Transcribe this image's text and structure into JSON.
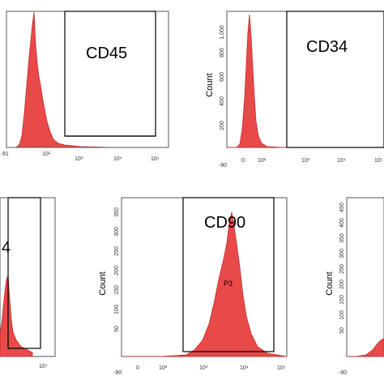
{
  "chart_data": [
    {
      "type": "area",
      "title": "CD45",
      "x_ticks": [
        "81",
        "10²",
        "10³",
        "10⁴",
        "10⁵"
      ],
      "y_ticks": [],
      "ylabel": "",
      "gate_label": "",
      "fill_color": "#e84a4a",
      "peak_x": "10^1.8",
      "gate_positive_percent_estimate": 0
    },
    {
      "type": "area",
      "title": "CD34",
      "x_ticks": [
        "-90",
        "0",
        "10²",
        "10³",
        "10⁴",
        "10⁵"
      ],
      "y_ticks": [
        "200",
        "400",
        "600",
        "800",
        "1,000"
      ],
      "ylim": [
        0,
        1100
      ],
      "ylabel": "Count",
      "gate_label": "",
      "fill_color": "#e84a4a",
      "peak_count": 1050
    },
    {
      "type": "area",
      "title": "4",
      "x_ticks": [
        "10⁵"
      ],
      "y_ticks": [],
      "ylabel": "",
      "gate_label": "",
      "fill_color": "#e84a4a"
    },
    {
      "type": "area",
      "title": "CD90",
      "x_ticks": [
        "-90",
        "0",
        "10²",
        "10³",
        "10⁴",
        "10⁵"
      ],
      "y_ticks": [
        "50",
        "100",
        "150",
        "200",
        "250",
        "300",
        "350"
      ],
      "ylim": [
        0,
        370
      ],
      "ylabel": "Count",
      "gate_label": "P3",
      "fill_color": "#e84a4a",
      "peak_count": 350
    },
    {
      "type": "area",
      "title": "",
      "x_ticks": [
        "-90"
      ],
      "y_ticks": [
        "50",
        "100",
        "150",
        "200",
        "250",
        "300",
        "350",
        "400",
        "450"
      ],
      "ylim": [
        0,
        470
      ],
      "ylabel": "Count",
      "gate_label": "",
      "fill_color": "#e84a4a"
    }
  ]
}
